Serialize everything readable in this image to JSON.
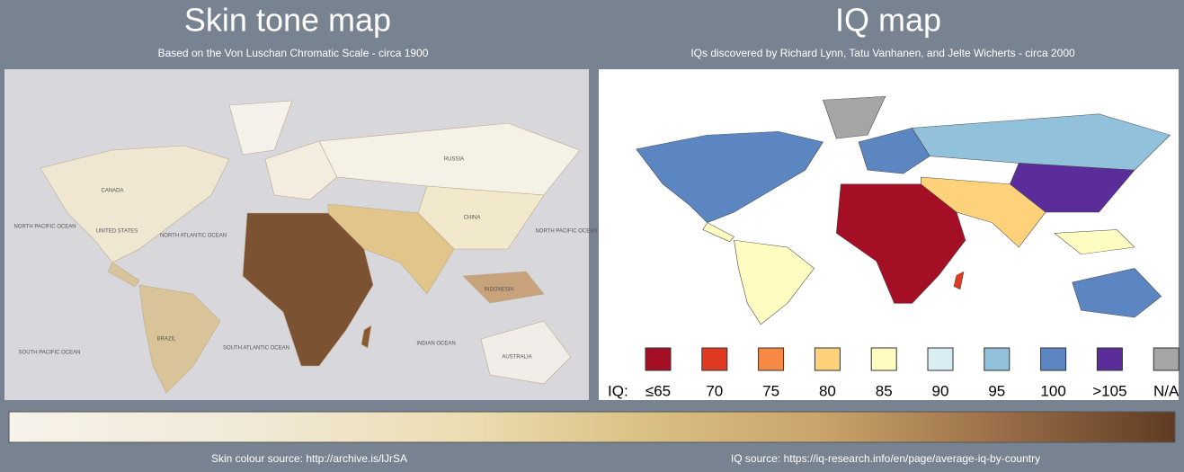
{
  "header": {
    "left_title": "Skin tone map",
    "left_subtitle": "Based on the Von Luschan Chromatic Scale - circa 1900",
    "right_title": "IQ map",
    "right_subtitle": "IQs discovered by Richard Lynn, Tatu Vanhanen, and Jelte Wicherts - circa 2000"
  },
  "skin_map": {
    "labels": [
      "CANADA",
      "UNITED STATES",
      "NORTH PACIFIC OCEAN",
      "NORTH ATLANTIC OCEAN",
      "BRAZIL",
      "SOUTH PACIFIC OCEAN",
      "SOUTH ATLANTIC OCEAN",
      "RUSSIA",
      "CHINA",
      "INDIAN OCEAN",
      "AUSTRALIA",
      "INDONESIA",
      "NORTH PACIFIC OCEAN"
    ]
  },
  "iq_map": {
    "legend": {
      "prefix": "IQ:",
      "items": [
        {
          "label": "≤65",
          "color": "#a50f26"
        },
        {
          "label": "70",
          "color": "#e03a22"
        },
        {
          "label": "75",
          "color": "#f68a45"
        },
        {
          "label": "80",
          "color": "#fdd27a"
        },
        {
          "label": "85",
          "color": "#fefcc0"
        },
        {
          "label": "90",
          "color": "#d8eef3"
        },
        {
          "label": "95",
          "color": "#92c1dc"
        },
        {
          "label": "100",
          "color": "#5b86c2"
        },
        {
          "label": ">105",
          "color": "#5b2d9a"
        },
        {
          "label": "N/A",
          "color": "#a5a5a5"
        }
      ]
    }
  },
  "footer": {
    "left": "Skin colour source: http://archive.is/lJrSA",
    "right": "IQ source:  https://iq-research.info/en/page/average-iq-by-country"
  }
}
